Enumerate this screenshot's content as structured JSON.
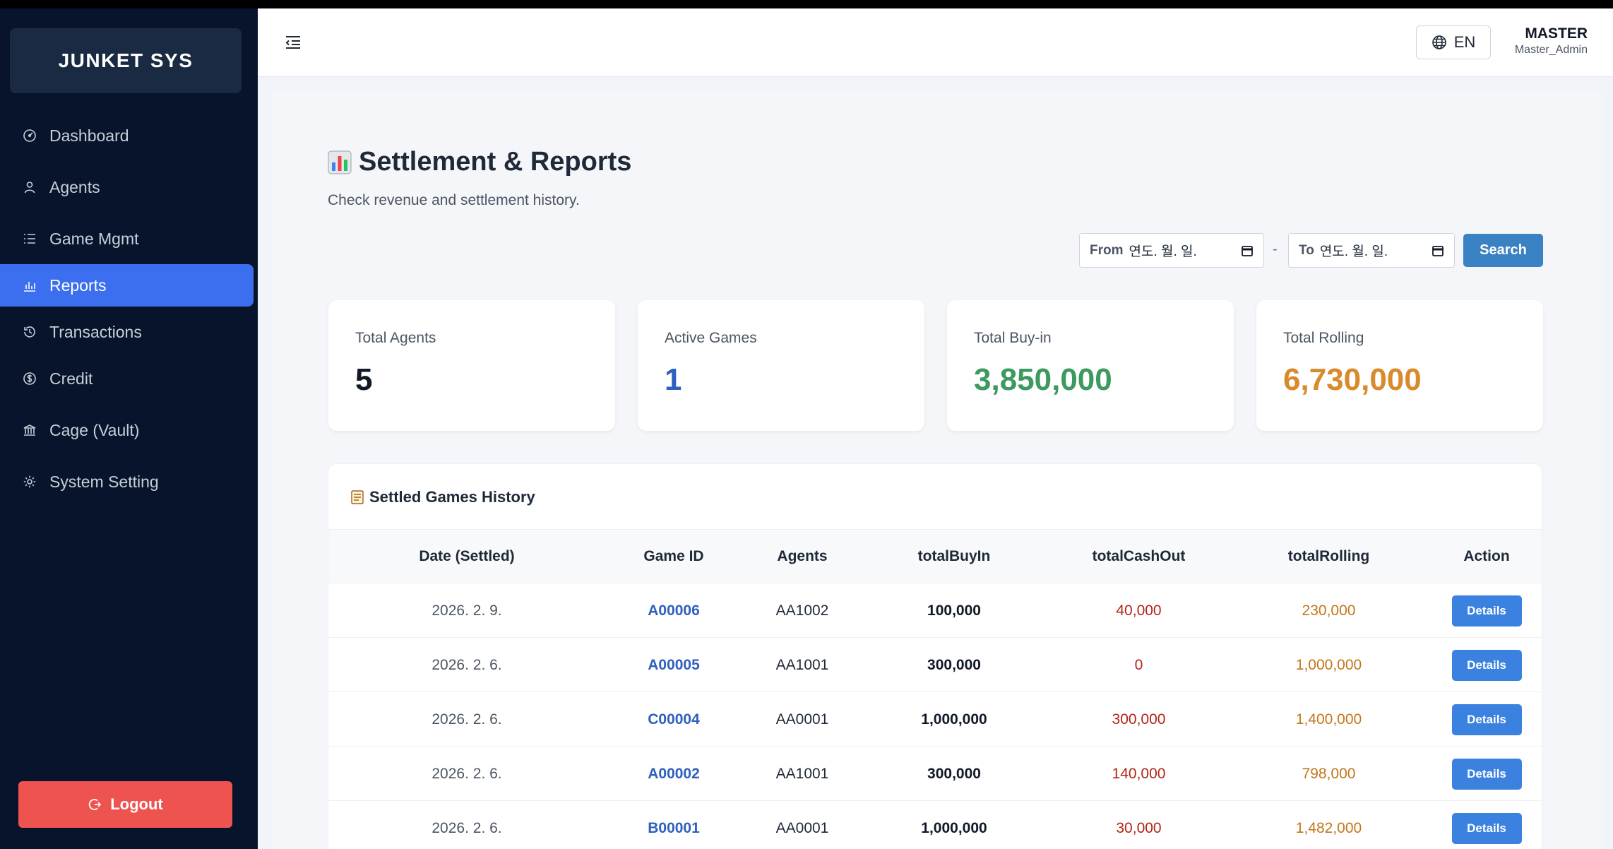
{
  "brand": "JUNKET SYS",
  "sidebar": {
    "items": [
      {
        "label": "Dashboard",
        "icon": "dashboard-icon"
      },
      {
        "label": "Agents",
        "icon": "user-icon"
      },
      {
        "label": "Game Mgmt",
        "icon": "list-icon"
      },
      {
        "label": "Reports",
        "icon": "bar-chart-icon",
        "active": true
      },
      {
        "label": "Transactions",
        "icon": "history-icon"
      },
      {
        "label": "Credit",
        "icon": "dollar-circle-icon"
      },
      {
        "label": "Cage (Vault)",
        "icon": "bank-icon"
      },
      {
        "label": "System Setting",
        "icon": "gear-icon"
      }
    ],
    "logout_label": "Logout"
  },
  "header": {
    "lang_label": "EN",
    "user_name": "MASTER",
    "user_role": "Master_Admin"
  },
  "page": {
    "title": "Settlement & Reports",
    "subtitle": "Check revenue and settlement history."
  },
  "filters": {
    "from_label": "From",
    "from_value": "연도. 월. 일.",
    "separator": "-",
    "to_label": "To",
    "to_value": "연도. 월. 일.",
    "search_label": "Search"
  },
  "stats": [
    {
      "label": "Total Agents",
      "value": "5",
      "color": "#111827"
    },
    {
      "label": "Active Games",
      "value": "1",
      "color": "#2f5fbf"
    },
    {
      "label": "Total Buy-in",
      "value": "3,850,000",
      "color": "#3d9a5f"
    },
    {
      "label": "Total Rolling",
      "value": "6,730,000",
      "color": "#d98a2b"
    }
  ],
  "table": {
    "title": "Settled Games History",
    "columns": [
      "Date (Settled)",
      "Game ID",
      "Agents",
      "totalBuyIn",
      "totalCashOut",
      "totalRolling",
      "Action"
    ],
    "rows": [
      {
        "date": "2026. 2. 9.",
        "game_id": "A00006",
        "agent": "AA1002",
        "buy_in": "100,000",
        "cash_out": "40,000",
        "rolling": "230,000",
        "action": "Details"
      },
      {
        "date": "2026. 2. 6.",
        "game_id": "A00005",
        "agent": "AA1001",
        "buy_in": "300,000",
        "cash_out": "0",
        "rolling": "1,000,000",
        "action": "Details"
      },
      {
        "date": "2026. 2. 6.",
        "game_id": "C00004",
        "agent": "AA0001",
        "buy_in": "1,000,000",
        "cash_out": "300,000",
        "rolling": "1,400,000",
        "action": "Details"
      },
      {
        "date": "2026. 2. 6.",
        "game_id": "A00002",
        "agent": "AA1001",
        "buy_in": "300,000",
        "cash_out": "140,000",
        "rolling": "798,000",
        "action": "Details"
      },
      {
        "date": "2026. 2. 6.",
        "game_id": "B00001",
        "agent": "AA0001",
        "buy_in": "1,000,000",
        "cash_out": "30,000",
        "rolling": "1,482,000",
        "action": "Details"
      }
    ]
  }
}
